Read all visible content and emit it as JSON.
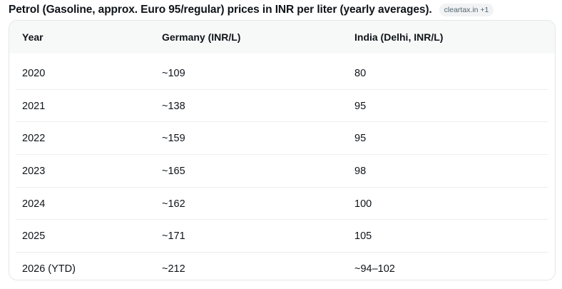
{
  "heading": "Petrol (Gasoline, approx. Euro 95/regular) prices in INR per liter (yearly averages).",
  "source_chip": "cleartax.in +1",
  "table": {
    "columns": [
      "Year",
      "Germany (INR/L)",
      "India (Delhi, INR/L)"
    ],
    "rows": [
      [
        "2020",
        "~109",
        "80"
      ],
      [
        "2021",
        "~138",
        "95"
      ],
      [
        "2022",
        "~159",
        "95"
      ],
      [
        "2023",
        "~165",
        "98"
      ],
      [
        "2024",
        "~162",
        "100"
      ],
      [
        "2025",
        "~171",
        "105"
      ],
      [
        "2026 (YTD)",
        "~212",
        "~94–102"
      ]
    ]
  }
}
